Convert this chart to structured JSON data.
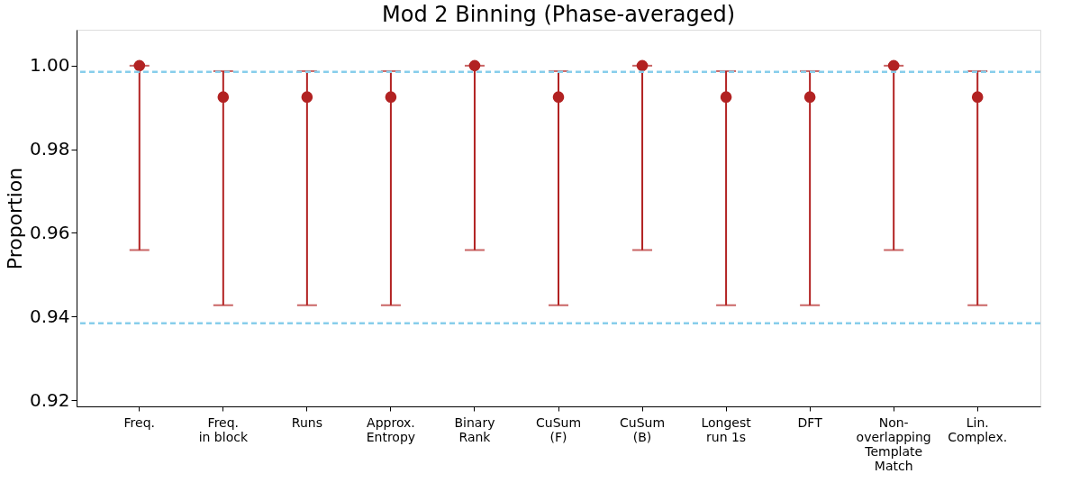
{
  "chart_data": {
    "type": "scatter",
    "title": "Mod 2 Binning (Phase-averaged)",
    "ylabel": "Proportion",
    "categories": [
      "Freq.",
      "Freq.\nin block",
      "Runs",
      "Approx.\nEntropy",
      "Binary\nRank",
      "CuSum\n(F)",
      "CuSum\n(B)",
      "Longest\nrun 1s",
      "DFT",
      "Non-\noverlapping\nTemplate\nMatch",
      "Lin.\nComplex."
    ],
    "series": [
      {
        "color": "#b22222",
        "values": [
          1.0,
          0.9925,
          0.9925,
          0.9925,
          1.0,
          0.9925,
          1.0,
          0.9925,
          0.9925,
          1.0,
          0.9925
        ],
        "errors": [
          [
            0.9559,
            1.0
          ],
          [
            0.9427,
            0.9987
          ],
          [
            0.9427,
            0.9987
          ],
          [
            0.9427,
            0.9987
          ],
          [
            0.9559,
            1.0
          ],
          [
            0.9427,
            0.9987
          ],
          [
            0.9559,
            1.0
          ],
          [
            0.9427,
            0.9987
          ],
          [
            0.9427,
            0.9987
          ],
          [
            0.9559,
            1.0
          ],
          [
            0.9427,
            0.9987
          ]
        ]
      }
    ],
    "ref_lines": [
      {
        "axis": "y",
        "value": 0.9985,
        "color": "#87ceeb",
        "line_style": "dashed"
      },
      {
        "axis": "y",
        "value": 0.9384,
        "color": "#87ceeb",
        "line_style": "dashed"
      }
    ],
    "ylim": [
      0.9185,
      1.0086
    ],
    "yticks": [
      0.92,
      0.94,
      0.96,
      0.98,
      {
        "value": 1.0,
        "label": "1.00"
      }
    ],
    "marker": "circle",
    "grid": false
  }
}
